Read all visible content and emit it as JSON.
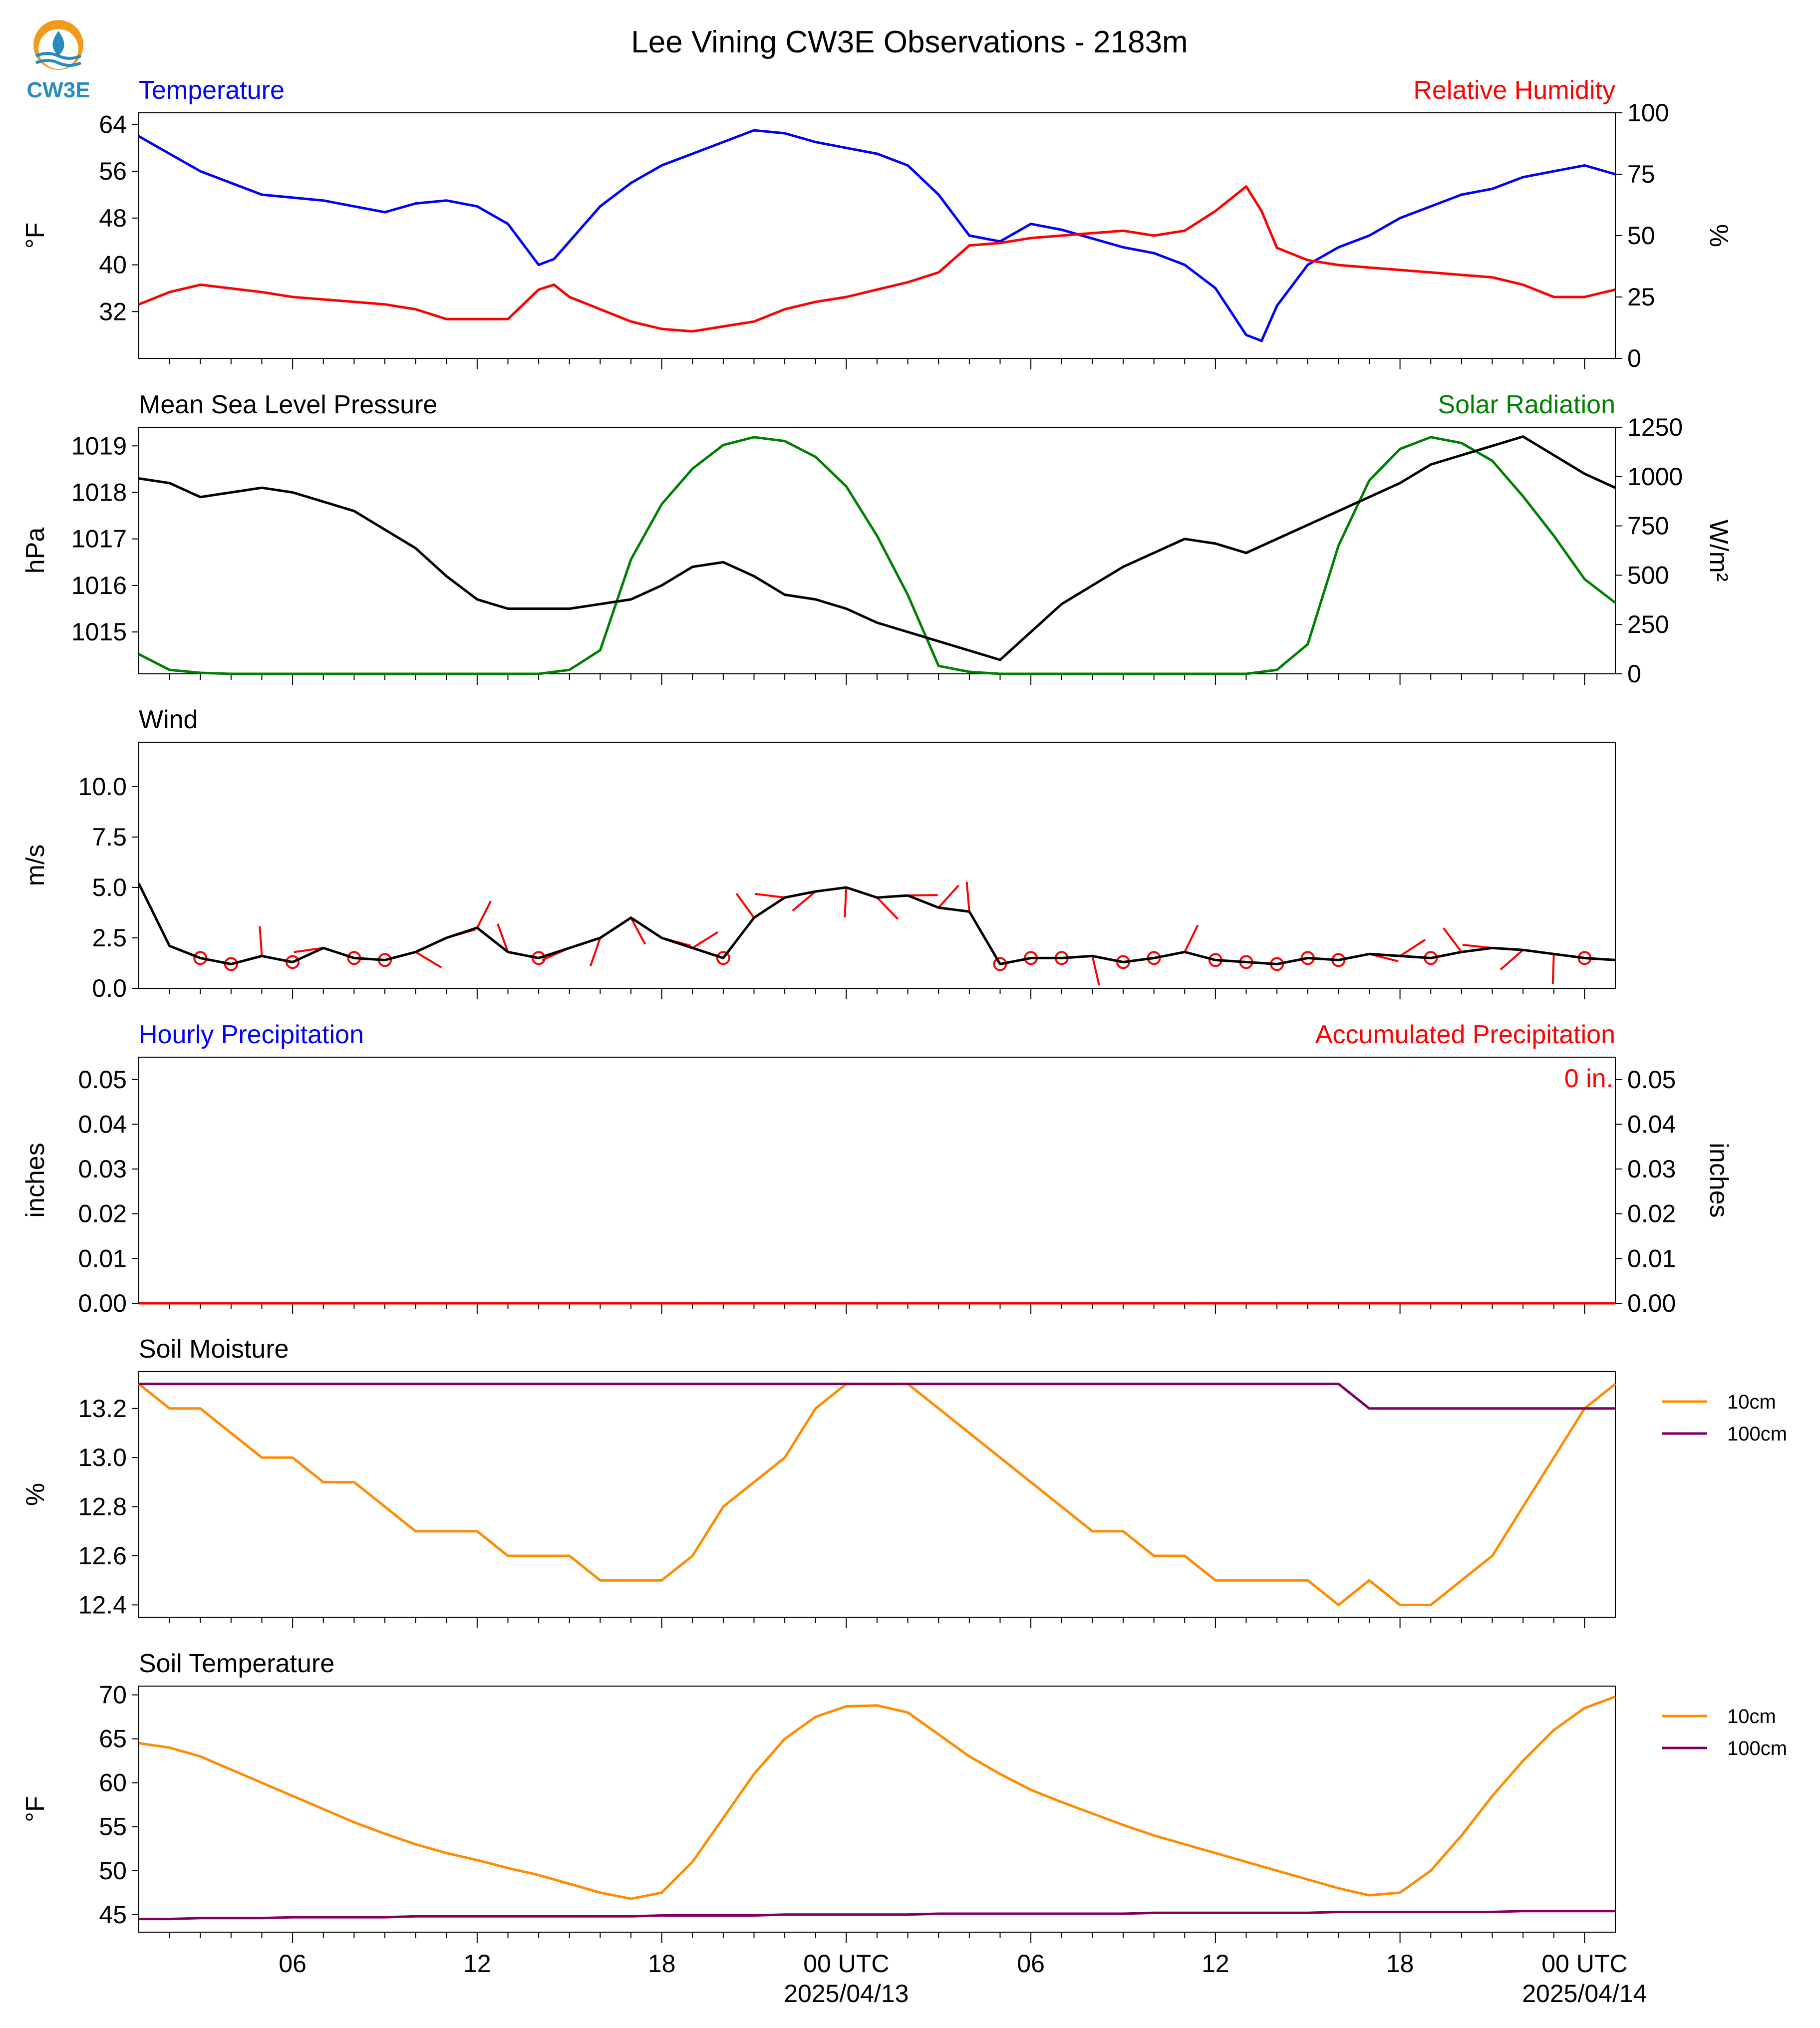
{
  "title": "Lee Vining CW3E Observations - 2183m",
  "logo_text": "CW3E",
  "colors": {
    "temperature": "#0000ff",
    "humidity": "#ff0000",
    "pressure": "#000000",
    "solar": "#008000",
    "wind": "#000000",
    "barb": "#ff0000",
    "soil10": "#ff8c00",
    "soil100": "#800060",
    "logo_orange": "#f29a1e",
    "logo_blue": "#2a8bbd"
  },
  "x_axis": {
    "tick_labels": [
      "06",
      "12",
      "18",
      "00 UTC",
      "06",
      "12",
      "18",
      "00 UTC"
    ],
    "date_labels": [
      "2025/04/13",
      "2025/04/14"
    ]
  },
  "chart_data": [
    {
      "type": "line",
      "panel": "temperature_humidity",
      "left_title": "Temperature",
      "right_title": "Relative Humidity",
      "ylabel": "°F",
      "ylabel_right": "%",
      "ylim": [
        24,
        66
      ],
      "ylim_right": [
        0,
        100
      ],
      "yticks": [
        "64",
        "56",
        "48",
        "40",
        "32"
      ],
      "yticks_right": [
        "100",
        "75",
        "50",
        "25",
        "0"
      ],
      "x_hours": [
        0,
        1,
        2,
        4,
        5,
        6,
        7,
        8,
        9,
        10,
        11,
        12,
        13,
        13.5,
        14,
        15,
        16,
        17,
        18,
        19,
        20,
        21,
        22,
        23,
        24,
        25,
        26,
        27,
        28,
        29,
        30,
        31,
        32,
        33,
        34,
        35,
        36,
        36.5,
        37,
        38,
        39,
        40,
        41,
        42,
        43,
        44,
        45,
        46,
        47,
        48
      ],
      "series": [
        {
          "name": "Temperature",
          "values": [
            62,
            59,
            56,
            52,
            51.5,
            51,
            50,
            49,
            50.5,
            51,
            50,
            47,
            40,
            41,
            44,
            50,
            54,
            57,
            59,
            61,
            63,
            62.5,
            61,
            60,
            59,
            57,
            52,
            45,
            44,
            47,
            46,
            44.5,
            43,
            42,
            40,
            36,
            28,
            27,
            33,
            40,
            43,
            45,
            48,
            50,
            52,
            53,
            55,
            56,
            57,
            55.5
          ]
        },
        {
          "name": "Relative Humidity",
          "values": [
            22,
            27,
            30,
            27,
            25,
            24,
            23,
            22,
            20,
            16,
            16,
            16,
            28,
            30,
            25,
            20,
            15,
            12,
            11,
            13,
            15,
            20,
            23,
            25,
            28,
            31,
            35,
            46,
            47,
            49,
            50,
            51,
            52,
            50,
            52,
            60,
            70,
            60,
            45,
            40,
            38,
            37,
            36,
            35,
            34,
            33,
            30,
            25,
            25,
            28
          ]
        }
      ]
    },
    {
      "type": "line",
      "panel": "pressure_solar",
      "left_title": "Mean Sea Level Pressure",
      "right_title": "Solar Radiation",
      "ylabel": "hPa",
      "ylabel_right": "W/m²",
      "ylim": [
        1014.1,
        1019.4
      ],
      "ylim_right": [
        0,
        1250
      ],
      "yticks": [
        "1019",
        "1018",
        "1017",
        "1016",
        "1015"
      ],
      "yticks_right": [
        "1250",
        "1000",
        "750",
        "500",
        "250",
        "0"
      ],
      "x_hours": [
        0,
        1,
        2,
        3,
        4,
        5,
        6,
        7,
        8,
        9,
        10,
        11,
        12,
        13,
        14,
        15,
        16,
        17,
        18,
        19,
        20,
        21,
        22,
        23,
        24,
        25,
        26,
        27,
        28,
        29,
        30,
        31,
        32,
        33,
        34,
        35,
        36,
        37,
        38,
        39,
        40,
        41,
        42,
        43,
        44,
        45,
        46,
        47,
        48
      ],
      "series": [
        {
          "name": "Mean Sea Level Pressure",
          "values": [
            1018.3,
            1018.2,
            1017.9,
            1018.0,
            1018.1,
            1018.0,
            1017.8,
            1017.6,
            1017.2,
            1016.8,
            1016.2,
            1015.7,
            1015.5,
            1015.5,
            1015.5,
            1015.6,
            1015.7,
            1016.0,
            1016.4,
            1016.5,
            1016.2,
            1015.8,
            1015.7,
            1015.5,
            1015.2,
            1015.0,
            1014.8,
            1014.6,
            1014.4,
            1015.0,
            1015.6,
            1016.0,
            1016.4,
            1016.7,
            1017.0,
            1016.9,
            1016.7,
            1017.0,
            1017.3,
            1017.6,
            1017.9,
            1018.2,
            1018.6,
            1018.8,
            1019.0,
            1019.2,
            1018.8,
            1018.4,
            1018.1
          ]
        },
        {
          "name": "Solar Radiation",
          "values": [
            100,
            20,
            5,
            0,
            0,
            0,
            0,
            0,
            0,
            0,
            0,
            0,
            0,
            0,
            20,
            120,
            580,
            860,
            1040,
            1160,
            1200,
            1180,
            1100,
            950,
            700,
            400,
            40,
            10,
            0,
            0,
            0,
            0,
            0,
            0,
            0,
            0,
            0,
            20,
            150,
            650,
            980,
            1140,
            1200,
            1170,
            1080,
            900,
            700,
            480,
            360
          ]
        }
      ]
    },
    {
      "type": "line",
      "panel": "wind",
      "left_title": "Wind",
      "ylabel": "m/s",
      "ylim": [
        0,
        12.2
      ],
      "yticks": [
        "10.0",
        "7.5",
        "5.0",
        "2.5",
        "0.0"
      ],
      "x_hours": [
        0,
        1,
        2,
        3,
        4,
        5,
        6,
        7,
        8,
        9,
        10,
        11,
        12,
        13,
        14,
        15,
        16,
        17,
        18,
        19,
        20,
        21,
        22,
        23,
        24,
        25,
        26,
        27,
        28,
        29,
        30,
        31,
        32,
        33,
        34,
        35,
        36,
        37,
        38,
        39,
        40,
        41,
        42,
        43,
        44,
        45,
        46,
        47,
        48
      ],
      "series": [
        {
          "name": "Wind speed",
          "values": [
            5.2,
            2.1,
            1.5,
            1.2,
            1.6,
            1.3,
            2.0,
            1.5,
            1.4,
            1.8,
            2.5,
            3.0,
            1.8,
            1.5,
            2.0,
            2.5,
            3.5,
            2.5,
            2.0,
            1.5,
            3.5,
            4.5,
            4.8,
            5.0,
            4.5,
            4.6,
            4.0,
            3.8,
            1.2,
            1.5,
            1.5,
            1.6,
            1.3,
            1.5,
            1.8,
            1.4,
            1.3,
            1.2,
            1.5,
            1.4,
            1.7,
            1.6,
            1.5,
            1.8,
            2.0,
            1.9,
            1.7,
            1.5,
            1.4
          ]
        }
      ],
      "barb_hours": [
        2,
        3,
        4,
        5,
        6,
        7,
        8,
        9,
        10,
        11,
        12,
        13,
        14,
        15,
        16,
        17,
        18,
        19,
        20,
        21,
        22,
        23,
        24,
        25,
        26,
        27,
        28,
        29,
        30,
        31,
        32,
        33,
        34,
        35,
        36,
        37,
        38,
        39,
        40,
        41,
        42,
        43,
        44,
        45,
        46,
        47
      ]
    },
    {
      "type": "line",
      "panel": "precipitation",
      "left_title": "Hourly Precipitation",
      "right_title": "Accumulated Precipitation",
      "annotation": "0 in.",
      "ylabel": "inches",
      "ylabel_right": "inches",
      "ylim": [
        0,
        0.055
      ],
      "yticks": [
        "0.05",
        "0.04",
        "0.03",
        "0.02",
        "0.01",
        "0.00"
      ],
      "yticks_right": [
        "0.05",
        "0.04",
        "0.03",
        "0.02",
        "0.01",
        "0.00"
      ],
      "x_hours": [
        0,
        48
      ],
      "series": [
        {
          "name": "Hourly Precipitation",
          "values": [
            0,
            0
          ]
        }
      ]
    },
    {
      "type": "line",
      "panel": "soil_moisture",
      "left_title": "Soil Moisture",
      "ylabel": "%",
      "ylim": [
        12.35,
        13.35
      ],
      "yticks": [
        "13.2",
        "13.0",
        "12.8",
        "12.6",
        "12.4"
      ],
      "x_hours": [
        0,
        1,
        2,
        3,
        4,
        5,
        6,
        7,
        8,
        9,
        10,
        11,
        12,
        13,
        14,
        15,
        16,
        17,
        18,
        19,
        20,
        21,
        22,
        23,
        24,
        25,
        26,
        27,
        28,
        29,
        30,
        31,
        32,
        33,
        34,
        35,
        36,
        37,
        38,
        39,
        40,
        41,
        42,
        43,
        44,
        45,
        46,
        47,
        48
      ],
      "series": [
        {
          "name": "10cm",
          "values": [
            13.3,
            13.2,
            13.2,
            13.1,
            13.0,
            13.0,
            12.9,
            12.9,
            12.8,
            12.7,
            12.7,
            12.7,
            12.6,
            12.6,
            12.6,
            12.5,
            12.5,
            12.5,
            12.6,
            12.8,
            12.9,
            13.0,
            13.2,
            13.3,
            13.3,
            13.3,
            13.2,
            13.1,
            13.0,
            12.9,
            12.8,
            12.7,
            12.7,
            12.6,
            12.6,
            12.5,
            12.5,
            12.5,
            12.5,
            12.4,
            12.5,
            12.4,
            12.4,
            12.5,
            12.6,
            12.8,
            13.0,
            13.2,
            13.3
          ]
        },
        {
          "name": "100cm",
          "values": [
            13.3,
            13.3,
            13.3,
            13.3,
            13.3,
            13.3,
            13.3,
            13.3,
            13.3,
            13.3,
            13.3,
            13.3,
            13.3,
            13.3,
            13.3,
            13.3,
            13.3,
            13.3,
            13.3,
            13.3,
            13.3,
            13.3,
            13.3,
            13.3,
            13.3,
            13.3,
            13.3,
            13.3,
            13.3,
            13.3,
            13.3,
            13.3,
            13.3,
            13.3,
            13.3,
            13.3,
            13.3,
            13.3,
            13.3,
            13.3,
            13.2,
            13.2,
            13.2,
            13.2,
            13.2,
            13.2,
            13.2,
            13.2,
            13.2
          ]
        }
      ]
    },
    {
      "type": "line",
      "panel": "soil_temperature",
      "left_title": "Soil Temperature",
      "ylabel": "°F",
      "ylim": [
        43,
        71
      ],
      "yticks": [
        "70",
        "65",
        "60",
        "55",
        "50",
        "45"
      ],
      "x_hours": [
        0,
        1,
        2,
        3,
        4,
        5,
        6,
        7,
        8,
        9,
        10,
        11,
        12,
        13,
        14,
        15,
        16,
        17,
        18,
        19,
        20,
        21,
        22,
        23,
        24,
        25,
        26,
        27,
        28,
        29,
        30,
        31,
        32,
        33,
        34,
        35,
        36,
        37,
        38,
        39,
        40,
        41,
        42,
        43,
        44,
        45,
        46,
        47,
        48
      ],
      "series": [
        {
          "name": "10cm",
          "values": [
            64.5,
            64,
            63,
            61.5,
            60,
            58.5,
            57,
            55.5,
            54.2,
            53,
            52,
            51.2,
            50.3,
            49.5,
            48.5,
            47.5,
            46.8,
            47.5,
            51,
            56,
            61,
            65,
            67.5,
            68.7,
            68.8,
            68,
            65.5,
            63,
            61,
            59.2,
            57.8,
            56.5,
            55.2,
            54,
            53,
            52,
            51,
            50,
            49,
            48,
            47.2,
            47.5,
            50,
            54,
            58.5,
            62.5,
            66,
            68.5,
            69.8
          ]
        },
        {
          "name": "100cm",
          "values": [
            44.5,
            44.5,
            44.6,
            44.6,
            44.6,
            44.7,
            44.7,
            44.7,
            44.7,
            44.8,
            44.8,
            44.8,
            44.8,
            44.8,
            44.8,
            44.8,
            44.8,
            44.9,
            44.9,
            44.9,
            44.9,
            45.0,
            45.0,
            45.0,
            45.0,
            45.0,
            45.1,
            45.1,
            45.1,
            45.1,
            45.1,
            45.1,
            45.1,
            45.2,
            45.2,
            45.2,
            45.2,
            45.2,
            45.2,
            45.3,
            45.3,
            45.3,
            45.3,
            45.3,
            45.3,
            45.4,
            45.4,
            45.4,
            45.4
          ]
        }
      ]
    }
  ]
}
